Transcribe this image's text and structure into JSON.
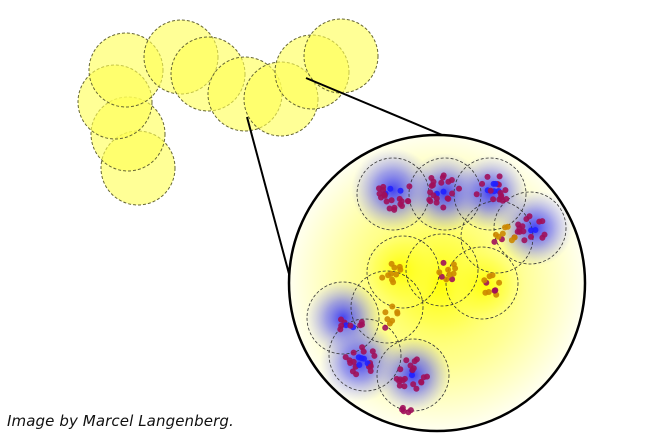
{
  "credit": "Image by Marcel Langenberg.",
  "colors": {
    "bead_fill": "#ffff55",
    "bead_outline": "#666633",
    "blob_core": "#2020ff",
    "atom": "#a0105a",
    "atom_orange": "#cc8800",
    "zoom_background": "#ffffb0",
    "line": "#000000"
  }
}
